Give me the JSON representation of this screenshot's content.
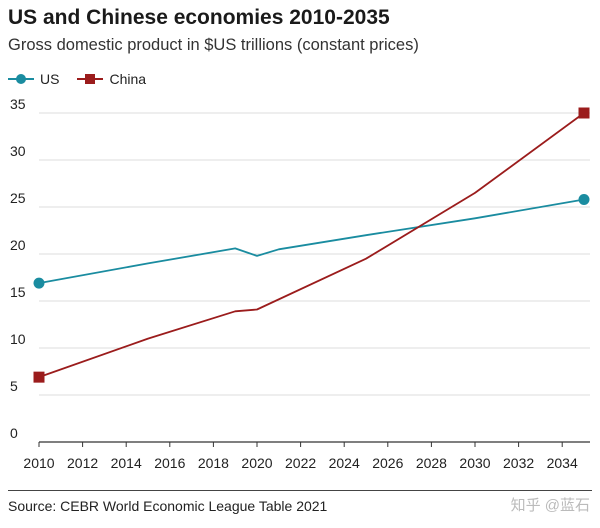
{
  "header": {
    "title": "US and Chinese economies 2010-2035",
    "subtitle": "Gross domestic product in $US trillions (constant prices)"
  },
  "footer": {
    "source": "Source: CEBR World Economic League Table 2021",
    "watermark": "知乎 @蓝石"
  },
  "chart_data": {
    "type": "line",
    "title": "US and Chinese economies 2010-2035",
    "subtitle": "Gross domestic product in $US trillions (constant prices)",
    "xlabel": "",
    "ylabel": "",
    "xlim": [
      2010,
      2035
    ],
    "ylim": [
      0,
      35
    ],
    "x_ticks": [
      2010,
      2012,
      2014,
      2016,
      2018,
      2020,
      2022,
      2024,
      2026,
      2028,
      2030,
      2032,
      2034
    ],
    "y_ticks": [
      0,
      5,
      10,
      15,
      20,
      25,
      30,
      35
    ],
    "grid": "horizontal",
    "legend_position": "top-left",
    "series": [
      {
        "name": "US",
        "color": "#1a8ca0",
        "marker": "circle",
        "points": [
          [
            2010,
            16.9
          ],
          [
            2015,
            19.0
          ],
          [
            2019,
            20.6
          ],
          [
            2020,
            19.8
          ],
          [
            2021,
            20.5
          ],
          [
            2025,
            22.0
          ],
          [
            2030,
            23.8
          ],
          [
            2035,
            25.8
          ]
        ]
      },
      {
        "name": "China",
        "color": "#9b1c1c",
        "marker": "square",
        "points": [
          [
            2010,
            6.9
          ],
          [
            2015,
            11.0
          ],
          [
            2019,
            13.9
          ],
          [
            2020,
            14.1
          ],
          [
            2025,
            19.5
          ],
          [
            2030,
            26.5
          ],
          [
            2035,
            35.0
          ]
        ]
      }
    ]
  }
}
